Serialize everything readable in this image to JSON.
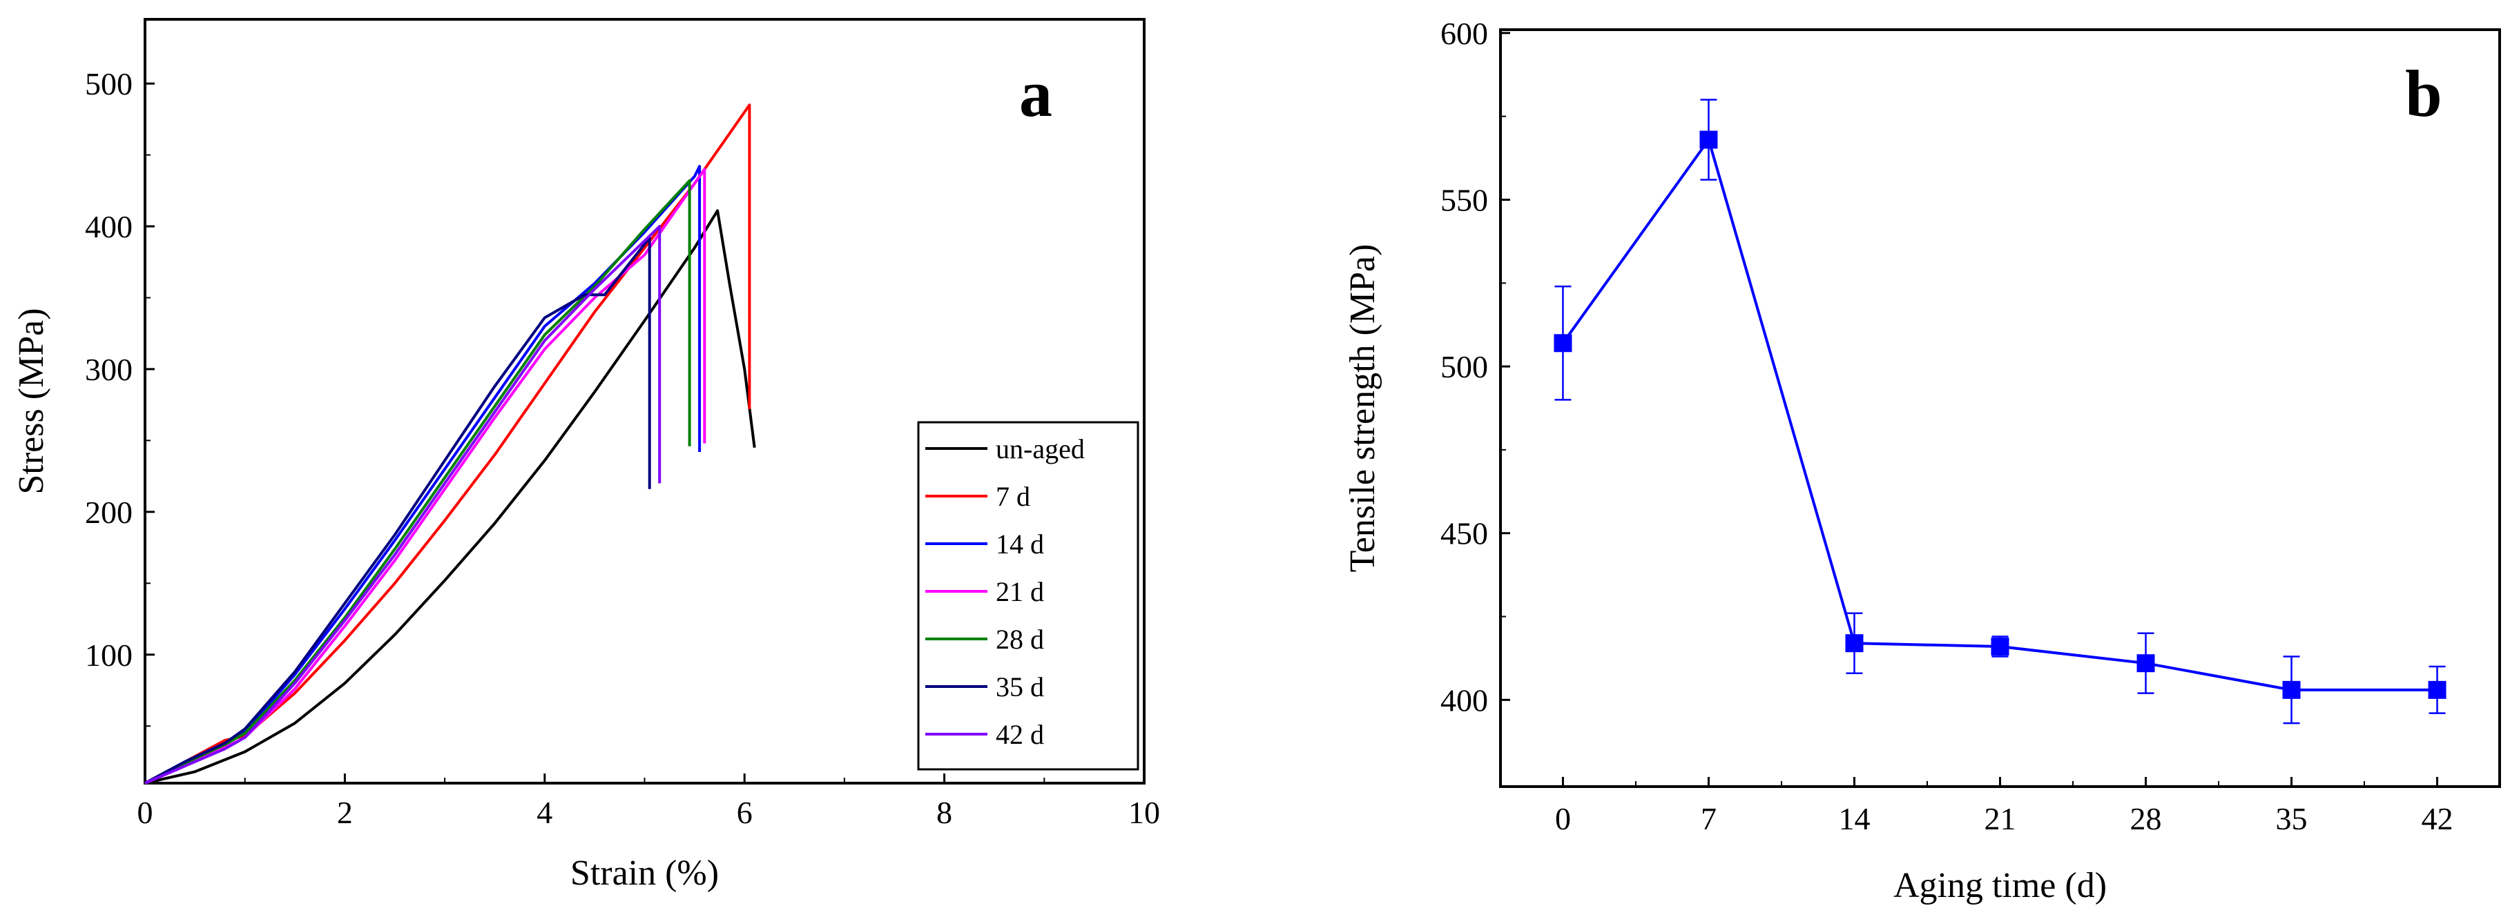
{
  "chart_data": [
    {
      "type": "line",
      "panel_label": "a",
      "xlabel": "Strain (%)",
      "ylabel": "Stress (MPa)",
      "xlim": [
        0,
        10
      ],
      "ylim": [
        10,
        545
      ],
      "xticks": [
        0,
        2,
        4,
        6,
        8,
        10
      ],
      "yticks": [
        100,
        200,
        300,
        400,
        500
      ],
      "legend_position": "bottom-right",
      "series": [
        {
          "name": "un-aged",
          "color": "#000000",
          "x": [
            0,
            0.5,
            1.0,
            1.5,
            2.0,
            2.5,
            3.0,
            3.5,
            4.0,
            4.5,
            5.0,
            5.5,
            5.73,
            5.85,
            6.0,
            6.1
          ],
          "y": [
            10,
            18,
            32,
            52,
            80,
            114,
            152,
            192,
            236,
            284,
            334,
            385,
            411,
            360,
            300,
            245
          ]
        },
        {
          "name": "7 d",
          "color": "#ff0000",
          "x": [
            0,
            0.4,
            0.8,
            1.0,
            1.5,
            2.0,
            2.5,
            3.0,
            3.5,
            4.0,
            4.5,
            5.0,
            5.5,
            6.05,
            6.05
          ],
          "y": [
            10,
            25,
            40,
            43,
            73,
            110,
            150,
            194,
            240,
            290,
            340,
            385,
            430,
            485,
            272
          ]
        },
        {
          "name": "14 d",
          "color": "#0000ff",
          "x": [
            0,
            0.4,
            0.8,
            1.0,
            1.5,
            2.0,
            2.5,
            3.0,
            3.5,
            4.0,
            4.5,
            5.0,
            5.5,
            5.55,
            5.55
          ],
          "y": [
            10,
            25,
            38,
            46,
            86,
            132,
            180,
            230,
            280,
            330,
            360,
            396,
            435,
            442,
            242
          ]
        },
        {
          "name": "21 d",
          "color": "#ff00ff",
          "x": [
            0,
            0.4,
            0.8,
            1.0,
            1.5,
            2.0,
            2.5,
            3.0,
            3.5,
            4.0,
            4.5,
            5.0,
            5.6,
            5.6
          ],
          "y": [
            10,
            22,
            35,
            42,
            76,
            120,
            166,
            216,
            266,
            314,
            350,
            380,
            440,
            248
          ]
        },
        {
          "name": "28 d",
          "color": "#008000",
          "x": [
            0,
            0.4,
            0.8,
            1.0,
            1.5,
            2.0,
            2.5,
            3.0,
            3.5,
            4.0,
            4.5,
            5.0,
            5.45,
            5.45
          ],
          "y": [
            10,
            24,
            37,
            45,
            82,
            126,
            174,
            224,
            274,
            324,
            358,
            398,
            432,
            246
          ]
        },
        {
          "name": "35 d",
          "color": "#000080",
          "x": [
            0,
            0.4,
            0.8,
            1.0,
            1.5,
            2.0,
            2.5,
            3.0,
            3.5,
            4.0,
            4.4,
            4.6,
            5.05,
            5.05
          ],
          "y": [
            10,
            25,
            38,
            48,
            88,
            136,
            184,
            236,
            288,
            336,
            352,
            352,
            392,
            216
          ]
        },
        {
          "name": "42 d",
          "color": "#8000ff",
          "x": [
            0,
            0.4,
            0.8,
            1.0,
            1.5,
            2.0,
            2.5,
            3.0,
            3.5,
            4.0,
            4.5,
            5.15,
            5.15
          ],
          "y": [
            10,
            22,
            34,
            42,
            80,
            124,
            170,
            220,
            270,
            320,
            356,
            400,
            220
          ]
        }
      ]
    },
    {
      "type": "line",
      "panel_label": "b",
      "xlabel": "Aging time (d)",
      "ylabel": "Tensile strength (MPa)",
      "xlim": [
        -3,
        45
      ],
      "ylim": [
        374,
        601
      ],
      "xticks": [
        0,
        7,
        14,
        21,
        28,
        35,
        42
      ],
      "yticks": [
        400,
        450,
        500,
        550,
        600
      ],
      "color": "#0000ff",
      "marker": "square",
      "x": [
        0,
        7,
        14,
        21,
        28,
        35,
        42
      ],
      "y": [
        507,
        568,
        417,
        416,
        411,
        403,
        403
      ],
      "error": [
        17,
        12,
        9,
        3,
        9,
        10,
        7
      ]
    }
  ]
}
